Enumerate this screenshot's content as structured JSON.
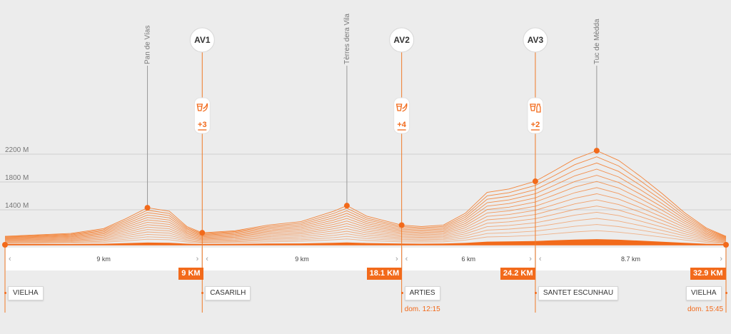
{
  "chart_data": {
    "type": "area",
    "title": "",
    "xlabel": "",
    "ylabel": "",
    "x_unit": "km",
    "y_unit": "M",
    "xlim": [
      0,
      32.9
    ],
    "ylim": [
      1000,
      2400
    ],
    "y_gridlines": [
      {
        "value": 1400,
        "label": "1400 M"
      },
      {
        "value": 1800,
        "label": "1800 M"
      },
      {
        "value": 2200,
        "label": "2200 M"
      }
    ],
    "grid": true,
    "profile": {
      "x": [
        0,
        1.5,
        3,
        4.5,
        5.5,
        6.5,
        7.5,
        8.3,
        9,
        10.5,
        12,
        13.5,
        15,
        15.6,
        16.5,
        18.1,
        19,
        20,
        21,
        22,
        23,
        24.2,
        25,
        26,
        27,
        28,
        29,
        30,
        31,
        32,
        32.9
      ],
      "y": [
        1020,
        1040,
        1060,
        1130,
        1270,
        1430,
        1380,
        1160,
        1070,
        1100,
        1180,
        1230,
        1380,
        1460,
        1310,
        1180,
        1160,
        1180,
        1350,
        1650,
        1700,
        1810,
        1950,
        2130,
        2250,
        2110,
        1880,
        1630,
        1360,
        1140,
        1020
      ]
    },
    "peaks": [
      {
        "name": "Pan de Vías",
        "km": 6.5,
        "elevation": 1430
      },
      {
        "name": "Tèrres dera Vila",
        "km": 15.6,
        "elevation": 1460
      },
      {
        "name": "Tuc de Mèdda",
        "km": 27,
        "elevation": 2250
      }
    ],
    "aid_stations": [
      {
        "label": "AV1",
        "km": 9,
        "elevation": 1070,
        "count": "+3",
        "icons": [
          "cup-icon",
          "banana-icon"
        ]
      },
      {
        "label": "AV2",
        "km": 18.1,
        "elevation": 1180,
        "count": "+4",
        "icons": [
          "cup-icon",
          "banana-icon"
        ]
      },
      {
        "label": "AV3",
        "km": 24.2,
        "elevation": 1810,
        "count": "+2",
        "icons": [
          "cup-icon",
          "bottle-icon"
        ]
      }
    ],
    "segments": [
      {
        "label": "9 km",
        "from": 0,
        "to": 9
      },
      {
        "label": "9 km",
        "from": 9,
        "to": 18.1
      },
      {
        "label": "6 km",
        "from": 18.1,
        "to": 24.2
      },
      {
        "label": "8.7 km",
        "from": 24.2,
        "to": 32.9
      }
    ],
    "waypoints": [
      {
        "name": "VIELHA",
        "km": 0,
        "km_label": "",
        "time": ""
      },
      {
        "name": "CASARILH",
        "km": 9,
        "km_label": "9 KM",
        "time": ""
      },
      {
        "name": "ARTIES",
        "km": 18.1,
        "km_label": "18.1 KM",
        "time": "dom. 12:15"
      },
      {
        "name": "SANTET ESCUNHAU",
        "km": 24.2,
        "km_label": "24.2 KM",
        "time": ""
      },
      {
        "name": "VIELHA",
        "km": 32.9,
        "km_label": "32.9 KM",
        "time": "dom. 15:45"
      }
    ],
    "colors": {
      "accent": "#f26a1b",
      "contour": "#f3843a",
      "grid": "#cfcfcf",
      "background": "#ececec"
    }
  }
}
